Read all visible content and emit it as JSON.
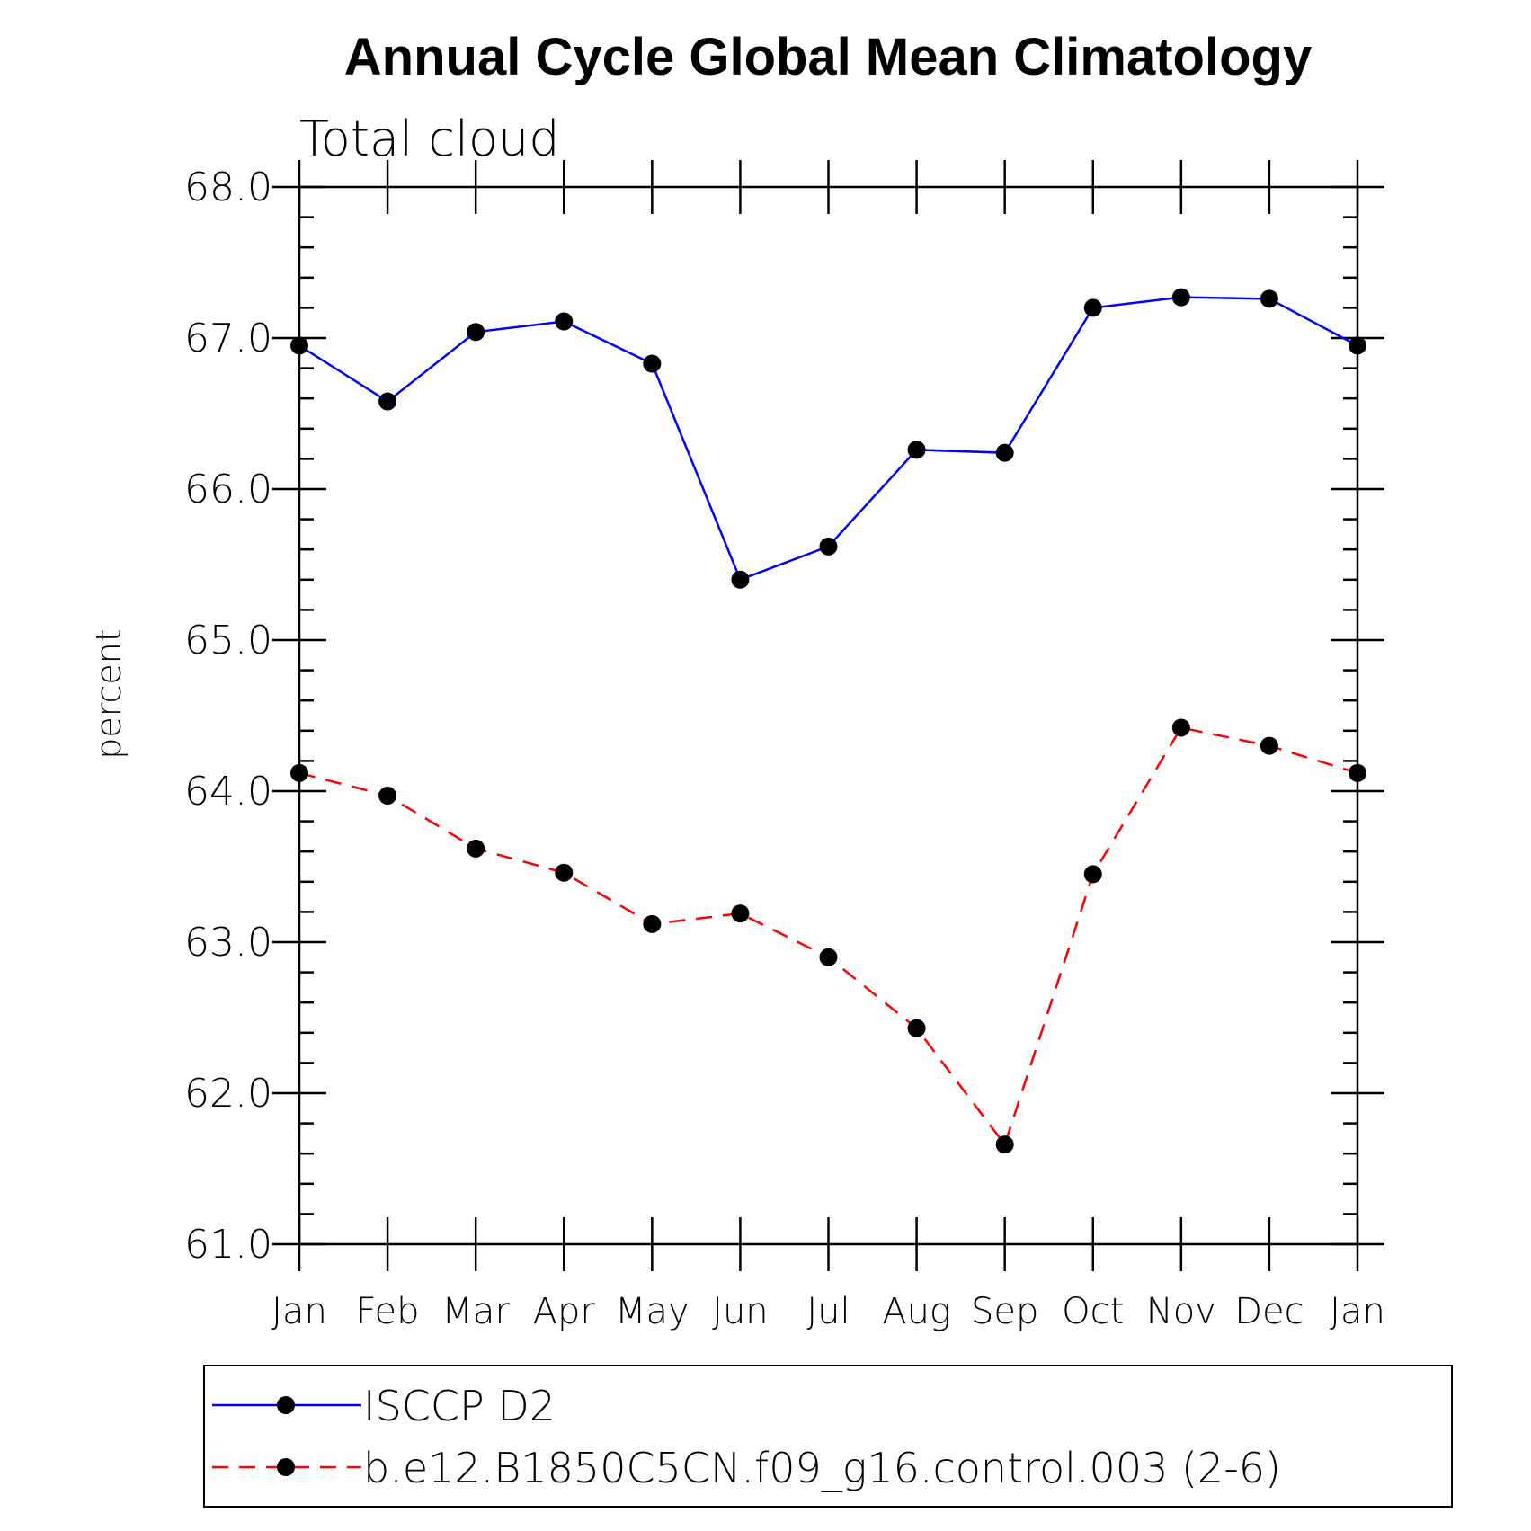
{
  "chart_data": {
    "type": "line",
    "title": "Annual Cycle Global Mean Climatology",
    "subtitle": "Total cloud",
    "xlabel": "",
    "ylabel": "percent",
    "categories": [
      "Jan",
      "Feb",
      "Mar",
      "Apr",
      "May",
      "Jun",
      "Jul",
      "Aug",
      "Sep",
      "Oct",
      "Nov",
      "Dec",
      "Jan"
    ],
    "ylim": [
      61.0,
      68.0
    ],
    "yticks": [
      "61.0",
      "62.0",
      "63.0",
      "64.0",
      "65.0",
      "66.0",
      "67.0",
      "68.0"
    ],
    "grid": false,
    "legend_position": "bottom",
    "series": [
      {
        "name": "ISCCP D2",
        "color": "#0000ff",
        "line_style": "solid",
        "marker": "filled-circle",
        "values": [
          66.95,
          66.58,
          67.04,
          67.11,
          66.83,
          65.4,
          65.62,
          66.26,
          66.24,
          67.2,
          67.27,
          67.26,
          66.95
        ]
      },
      {
        "name": "b.e12.B1850C5CN.f09_g16.control.003 (2-6)",
        "color": "#ff0000",
        "line_style": "dashed",
        "marker": "filled-circle",
        "values": [
          64.12,
          63.97,
          63.62,
          63.46,
          63.12,
          63.19,
          62.9,
          62.43,
          61.66,
          63.45,
          64.42,
          64.3,
          64.12
        ]
      }
    ]
  }
}
